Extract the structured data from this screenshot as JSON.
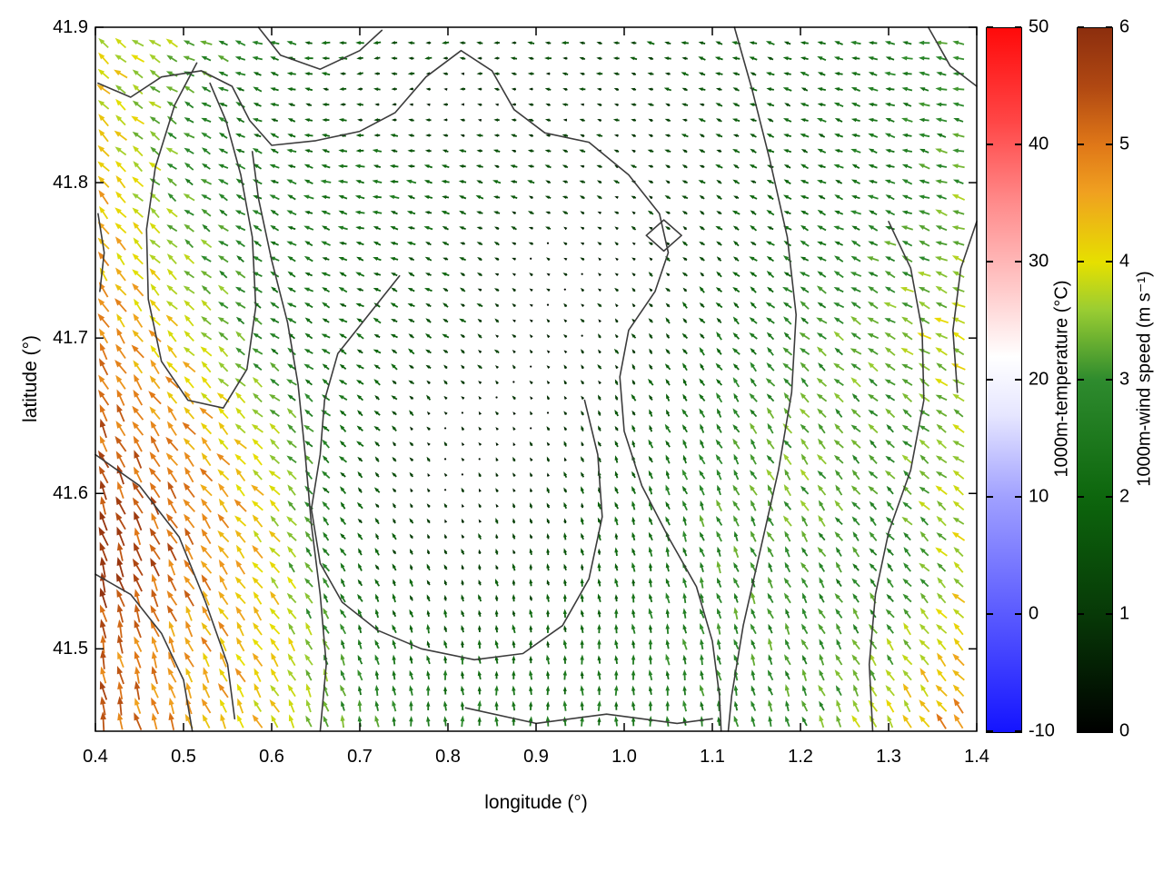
{
  "chart_data": {
    "type": "quiver",
    "title": "",
    "xlabel": "longitude (°)",
    "ylabel": "latitude (°)",
    "xlim": [
      0.4,
      1.4
    ],
    "ylim": [
      41.447,
      41.9
    ],
    "xticks": [
      0.4,
      0.5,
      0.6,
      0.7,
      0.8,
      0.9,
      1.0,
      1.1,
      1.2,
      1.3,
      1.4
    ],
    "xtick_labels": [
      "0.4",
      "0.5",
      "0.6",
      "0.7",
      "0.8",
      "0.9",
      "1.0",
      "1.1",
      "1.2",
      "1.3",
      "1.4"
    ],
    "yticks": [
      41.5,
      41.6,
      41.7,
      41.8,
      41.9
    ],
    "ytick_labels": [
      "41.5",
      "41.6",
      "41.7",
      "41.8",
      "41.9"
    ],
    "grid": false,
    "background_color": "#ffffff",
    "frame_color": "#000000",
    "colorbars": [
      {
        "id": "temperature",
        "label": "1000m-temperature (°C)",
        "min": -10,
        "max": 50,
        "ticks": [
          -10,
          0,
          10,
          20,
          30,
          40,
          50
        ],
        "tick_labels": [
          "-10",
          "0",
          "10",
          "20",
          "30",
          "40",
          "50"
        ],
        "stops": [
          [
            -10,
            "#1414ff"
          ],
          [
            0,
            "#5a5aff"
          ],
          [
            10,
            "#a0a0ff"
          ],
          [
            17,
            "#e6e6ff"
          ],
          [
            22,
            "#ffffff"
          ],
          [
            28,
            "#ffc8c8"
          ],
          [
            35,
            "#ff8c8c"
          ],
          [
            42,
            "#ff4646"
          ],
          [
            50,
            "#ff0a0a"
          ]
        ]
      },
      {
        "id": "wind_speed",
        "label": "1000m-wind speed (m s⁻¹)",
        "min": 0,
        "max": 6,
        "ticks": [
          0,
          1,
          2,
          3,
          4,
          5,
          6
        ],
        "tick_labels": [
          "0",
          "1",
          "2",
          "3",
          "4",
          "5",
          "6"
        ],
        "stops": [
          [
            0,
            "#000000"
          ],
          [
            1,
            "#073907"
          ],
          [
            2,
            "#0d660d"
          ],
          [
            3,
            "#2e8b2e"
          ],
          [
            3.6,
            "#9acd32"
          ],
          [
            4,
            "#e6e000"
          ],
          [
            4.6,
            "#f0a020"
          ],
          [
            5,
            "#e07818"
          ],
          [
            5.5,
            "#b04812"
          ],
          [
            6,
            "#8c2e0e"
          ]
        ]
      }
    ],
    "vector_field": {
      "units": "m s⁻¹",
      "lons": [
        0.4,
        0.5,
        0.6,
        0.7,
        0.8,
        0.9,
        1.0,
        1.1,
        1.2,
        1.3,
        1.4
      ],
      "lats": [
        41.45,
        41.5,
        41.55,
        41.6,
        41.65,
        41.7,
        41.75,
        41.8,
        41.85,
        41.9
      ],
      "speed": [
        [
          5.5,
          4.6,
          4.0,
          3.0,
          2.6,
          2.5,
          2.5,
          2.6,
          3.0,
          4.0,
          5.0
        ],
        [
          5.2,
          4.6,
          4.2,
          2.6,
          2.0,
          2.0,
          2.4,
          2.9,
          3.0,
          3.4,
          4.5
        ],
        [
          6.0,
          5.0,
          4.0,
          2.0,
          1.2,
          1.5,
          2.0,
          2.9,
          3.0,
          2.6,
          4.0
        ],
        [
          5.6,
          5.0,
          4.0,
          1.6,
          0.5,
          1.0,
          2.0,
          3.0,
          3.4,
          3.0,
          4.0
        ],
        [
          5.2,
          4.6,
          3.5,
          2.0,
          0.5,
          0.5,
          1.5,
          2.6,
          3.4,
          3.0,
          3.6
        ],
        [
          5.0,
          4.0,
          2.6,
          2.0,
          1.5,
          0.5,
          1.0,
          2.0,
          3.0,
          3.4,
          4.0
        ],
        [
          4.6,
          3.5,
          2.5,
          2.0,
          1.5,
          0.5,
          0.6,
          1.5,
          2.5,
          3.0,
          3.6
        ],
        [
          4.5,
          3.0,
          2.5,
          2.5,
          2.0,
          1.5,
          1.0,
          1.5,
          2.0,
          2.5,
          3.5
        ],
        [
          4.2,
          3.0,
          2.0,
          1.2,
          0.6,
          1.0,
          1.0,
          1.5,
          2.0,
          2.5,
          3.0
        ],
        [
          4.0,
          3.5,
          2.6,
          2.0,
          1.5,
          1.5,
          1.5,
          2.0,
          2.0,
          2.5,
          3.4
        ]
      ],
      "direction_deg_ccw_from_east": [
        [
          100,
          110,
          120,
          100,
          90,
          90,
          90,
          100,
          110,
          120,
          130
        ],
        [
          100,
          115,
          125,
          110,
          100,
          95,
          95,
          105,
          115,
          125,
          135
        ],
        [
          105,
          120,
          130,
          120,
          110,
          100,
          100,
          110,
          120,
          130,
          140
        ],
        [
          110,
          125,
          135,
          130,
          120,
          110,
          110,
          115,
          125,
          135,
          145
        ],
        [
          115,
          130,
          140,
          140,
          130,
          120,
          115,
          120,
          130,
          140,
          150
        ],
        [
          120,
          135,
          145,
          150,
          145,
          135,
          125,
          130,
          140,
          150,
          155
        ],
        [
          125,
          140,
          150,
          160,
          155,
          150,
          140,
          140,
          150,
          155,
          160
        ],
        [
          130,
          145,
          155,
          170,
          165,
          160,
          155,
          150,
          155,
          160,
          165
        ],
        [
          135,
          150,
          160,
          180,
          175,
          170,
          165,
          160,
          160,
          165,
          170
        ],
        [
          140,
          155,
          165,
          185,
          180,
          175,
          170,
          165,
          165,
          170,
          175
        ]
      ]
    },
    "contours": {
      "variable": "1000m-temperature",
      "color": "#3c3c3c",
      "paths": [
        [
          [
            0.585,
            41.9
          ],
          [
            0.61,
            41.882
          ],
          [
            0.655,
            41.873
          ],
          [
            0.7,
            41.885
          ],
          [
            0.725,
            41.898
          ]
        ],
        [
          [
            0.403,
            41.864
          ],
          [
            0.44,
            41.855
          ],
          [
            0.475,
            41.868
          ],
          [
            0.52,
            41.872
          ],
          [
            0.555,
            41.862
          ],
          [
            0.575,
            41.84
          ],
          [
            0.6,
            41.824
          ],
          [
            0.65,
            41.827
          ],
          [
            0.7,
            41.833
          ],
          [
            0.74,
            41.845
          ],
          [
            0.775,
            41.868
          ],
          [
            0.815,
            41.885
          ],
          [
            0.85,
            41.872
          ],
          [
            0.875,
            41.847
          ],
          [
            0.91,
            41.832
          ],
          [
            0.96,
            41.826
          ],
          [
            1.005,
            41.805
          ],
          [
            1.04,
            41.78
          ],
          [
            1.05,
            41.755
          ],
          [
            1.035,
            41.73
          ],
          [
            1.005,
            41.705
          ],
          [
            0.995,
            41.675
          ],
          [
            1.0,
            41.64
          ],
          [
            1.02,
            41.605
          ],
          [
            1.05,
            41.572
          ],
          [
            1.082,
            41.54
          ],
          [
            1.1,
            41.505
          ],
          [
            1.108,
            41.47
          ],
          [
            1.11,
            41.447
          ]
        ],
        [
          [
            0.745,
            41.74
          ],
          [
            0.71,
            41.715
          ],
          [
            0.675,
            41.69
          ],
          [
            0.66,
            41.66
          ],
          [
            0.655,
            41.625
          ],
          [
            0.645,
            41.59
          ],
          [
            0.655,
            41.555
          ],
          [
            0.68,
            41.53
          ],
          [
            0.72,
            41.512
          ],
          [
            0.77,
            41.5
          ],
          [
            0.83,
            41.493
          ],
          [
            0.885,
            41.497
          ],
          [
            0.93,
            41.515
          ],
          [
            0.96,
            41.545
          ],
          [
            0.975,
            41.585
          ],
          [
            0.97,
            41.625
          ],
          [
            0.955,
            41.66
          ]
        ],
        [
          [
            0.515,
            41.877
          ],
          [
            0.49,
            41.85
          ],
          [
            0.468,
            41.81
          ],
          [
            0.458,
            41.77
          ],
          [
            0.46,
            41.725
          ],
          [
            0.475,
            41.685
          ],
          [
            0.505,
            41.66
          ],
          [
            0.545,
            41.655
          ],
          [
            0.572,
            41.68
          ],
          [
            0.582,
            41.72
          ],
          [
            0.578,
            41.765
          ],
          [
            0.565,
            41.805
          ],
          [
            0.548,
            41.84
          ],
          [
            0.53,
            41.864
          ]
        ],
        [
          [
            0.4,
            41.625
          ],
          [
            0.45,
            41.605
          ],
          [
            0.495,
            41.572
          ],
          [
            0.525,
            41.53
          ],
          [
            0.55,
            41.49
          ],
          [
            0.558,
            41.455
          ]
        ],
        [
          [
            0.4,
            41.548
          ],
          [
            0.44,
            41.535
          ],
          [
            0.475,
            41.51
          ],
          [
            0.5,
            41.48
          ],
          [
            0.51,
            41.447
          ]
        ],
        [
          [
            0.655,
            41.447
          ],
          [
            0.662,
            41.49
          ],
          [
            0.655,
            41.535
          ],
          [
            0.645,
            41.58
          ],
          [
            0.638,
            41.625
          ],
          [
            0.63,
            41.67
          ],
          [
            0.618,
            41.71
          ],
          [
            0.6,
            41.75
          ],
          [
            0.585,
            41.79
          ],
          [
            0.578,
            41.82
          ]
        ],
        [
          [
            1.125,
            41.9
          ],
          [
            1.145,
            41.86
          ],
          [
            1.165,
            41.815
          ],
          [
            1.185,
            41.765
          ],
          [
            1.195,
            41.715
          ],
          [
            1.19,
            41.665
          ],
          [
            1.175,
            41.615
          ],
          [
            1.155,
            41.565
          ],
          [
            1.135,
            41.515
          ],
          [
            1.122,
            41.47
          ],
          [
            1.118,
            41.447
          ]
        ],
        [
          [
            1.3,
            41.775
          ],
          [
            1.325,
            41.745
          ],
          [
            1.338,
            41.705
          ],
          [
            1.34,
            41.66
          ],
          [
            1.325,
            41.615
          ],
          [
            1.3,
            41.575
          ],
          [
            1.285,
            41.535
          ],
          [
            1.278,
            41.49
          ],
          [
            1.282,
            41.447
          ]
        ],
        [
          [
            0.82,
            41.462
          ],
          [
            0.9,
            41.452
          ],
          [
            0.98,
            41.458
          ],
          [
            1.06,
            41.452
          ],
          [
            1.1,
            41.455
          ]
        ],
        [
          [
            1.025,
            41.766
          ],
          [
            1.045,
            41.776
          ],
          [
            1.065,
            41.766
          ],
          [
            1.045,
            41.756
          ],
          [
            1.025,
            41.766
          ]
        ],
        [
          [
            1.345,
            41.9
          ],
          [
            1.37,
            41.875
          ],
          [
            1.4,
            41.862
          ]
        ],
        [
          [
            1.4,
            41.775
          ],
          [
            1.382,
            41.745
          ],
          [
            1.373,
            41.705
          ],
          [
            1.378,
            41.665
          ]
        ],
        [
          [
            0.403,
            41.78
          ],
          [
            0.41,
            41.755
          ],
          [
            0.405,
            41.73
          ]
        ]
      ]
    }
  }
}
